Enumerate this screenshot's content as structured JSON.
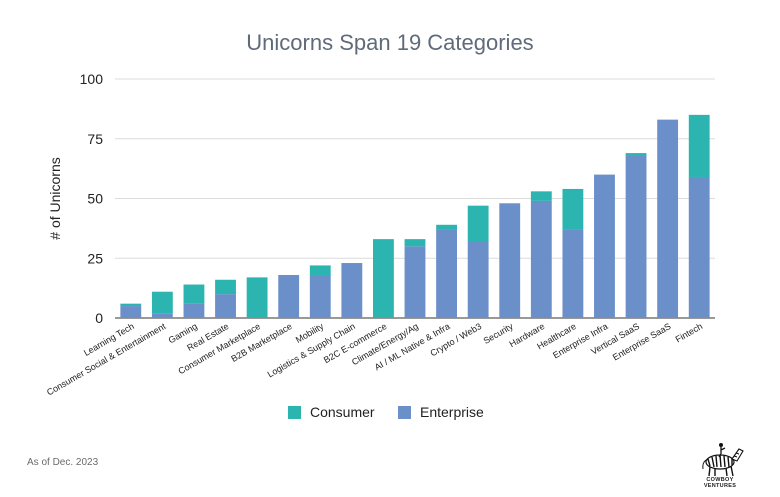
{
  "chart_data": {
    "type": "bar",
    "stacked": true,
    "title": "Unicorns Span 19 Categories",
    "ylabel": "# of Unicorns",
    "xlabel": "",
    "ylim": [
      0,
      100
    ],
    "yticks": [
      0,
      25,
      50,
      75,
      100
    ],
    "grid": true,
    "legend_position": "bottom",
    "categories": [
      "Learning Tech",
      "Consumer Social & Entertainment",
      "Gaming",
      "Real Estate",
      "Consumer Marketplace",
      "B2B Marketplace",
      "Mobility",
      "Logistics & Supply Chain",
      "B2C E-commerce",
      "Climate/Energy/Ag",
      "AI / ML Native & Infra",
      "Crypto / Web3",
      "Security",
      "Hardware",
      "Healthcare",
      "Enterprise Infra",
      "Vertical SaaS",
      "Enterprise SaaS",
      "Fintech"
    ],
    "series": [
      {
        "name": "Enterprise",
        "color": "#6b8fc9",
        "values": [
          5,
          2,
          6,
          10,
          0,
          18,
          18,
          23,
          0,
          30,
          37,
          32,
          48,
          49,
          37,
          60,
          68,
          83,
          59
        ]
      },
      {
        "name": "Consumer",
        "color": "#2cb5b0",
        "values": [
          1,
          9,
          8,
          6,
          17,
          0,
          4,
          0,
          33,
          3,
          2,
          15,
          0,
          4,
          17,
          0,
          1,
          0,
          26
        ]
      }
    ]
  },
  "legend": [
    {
      "label": "Consumer",
      "color": "#2cb5b0"
    },
    {
      "label": "Enterprise",
      "color": "#6b8fc9"
    }
  ],
  "footnote": "As of Dec. 2023",
  "logo": {
    "text": "COWBOY VENTURES",
    "icon": "zebra-with-rider-icon"
  }
}
